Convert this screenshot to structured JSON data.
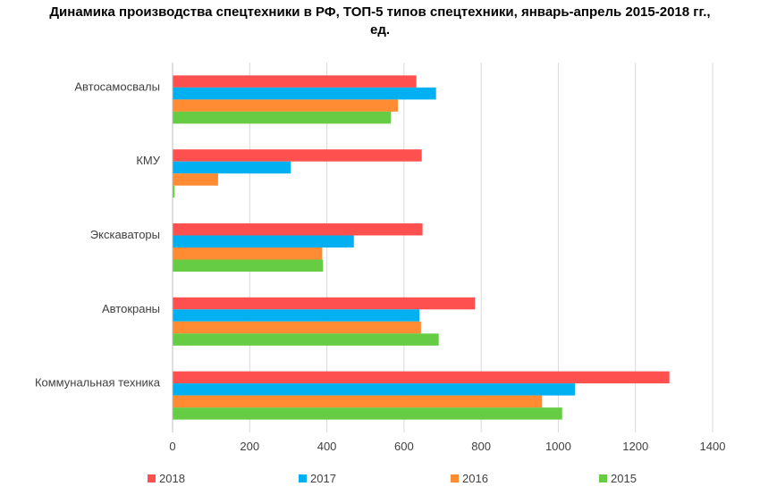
{
  "chart_data": {
    "type": "bar",
    "orientation": "horizontal",
    "title_line1": "Динамика производства спецтехники в РФ, ТОП-5 типов спецтехники, январь-апрель 2015-2018 гг.,",
    "title_line2": "ед.",
    "categories": [
      "Автосамосвалы",
      "КМУ",
      "Экскаваторы",
      "Автокраны",
      "Коммунальная техника"
    ],
    "series": [
      {
        "name": "2018",
        "color": "#ff5050",
        "values": [
          632,
          646,
          648,
          784,
          1288
        ]
      },
      {
        "name": "2017",
        "color": "#00b0f0",
        "values": [
          683,
          306,
          470,
          640,
          1043
        ]
      },
      {
        "name": "2016",
        "color": "#ff8c33",
        "values": [
          584,
          118,
          388,
          644,
          958
        ]
      },
      {
        "name": "2015",
        "color": "#66cc44",
        "values": [
          566,
          5,
          390,
          690,
          1010
        ]
      }
    ],
    "xlim": [
      0,
      1400
    ],
    "xticks": [
      0,
      200,
      400,
      600,
      800,
      1000,
      1200,
      1400
    ],
    "xtick_labels": [
      "0",
      "200",
      "400",
      "600",
      "800",
      "1000",
      "1200",
      "1400"
    ],
    "xlabel": "",
    "ylabel": "",
    "grid": true,
    "legend_position": "bottom"
  }
}
